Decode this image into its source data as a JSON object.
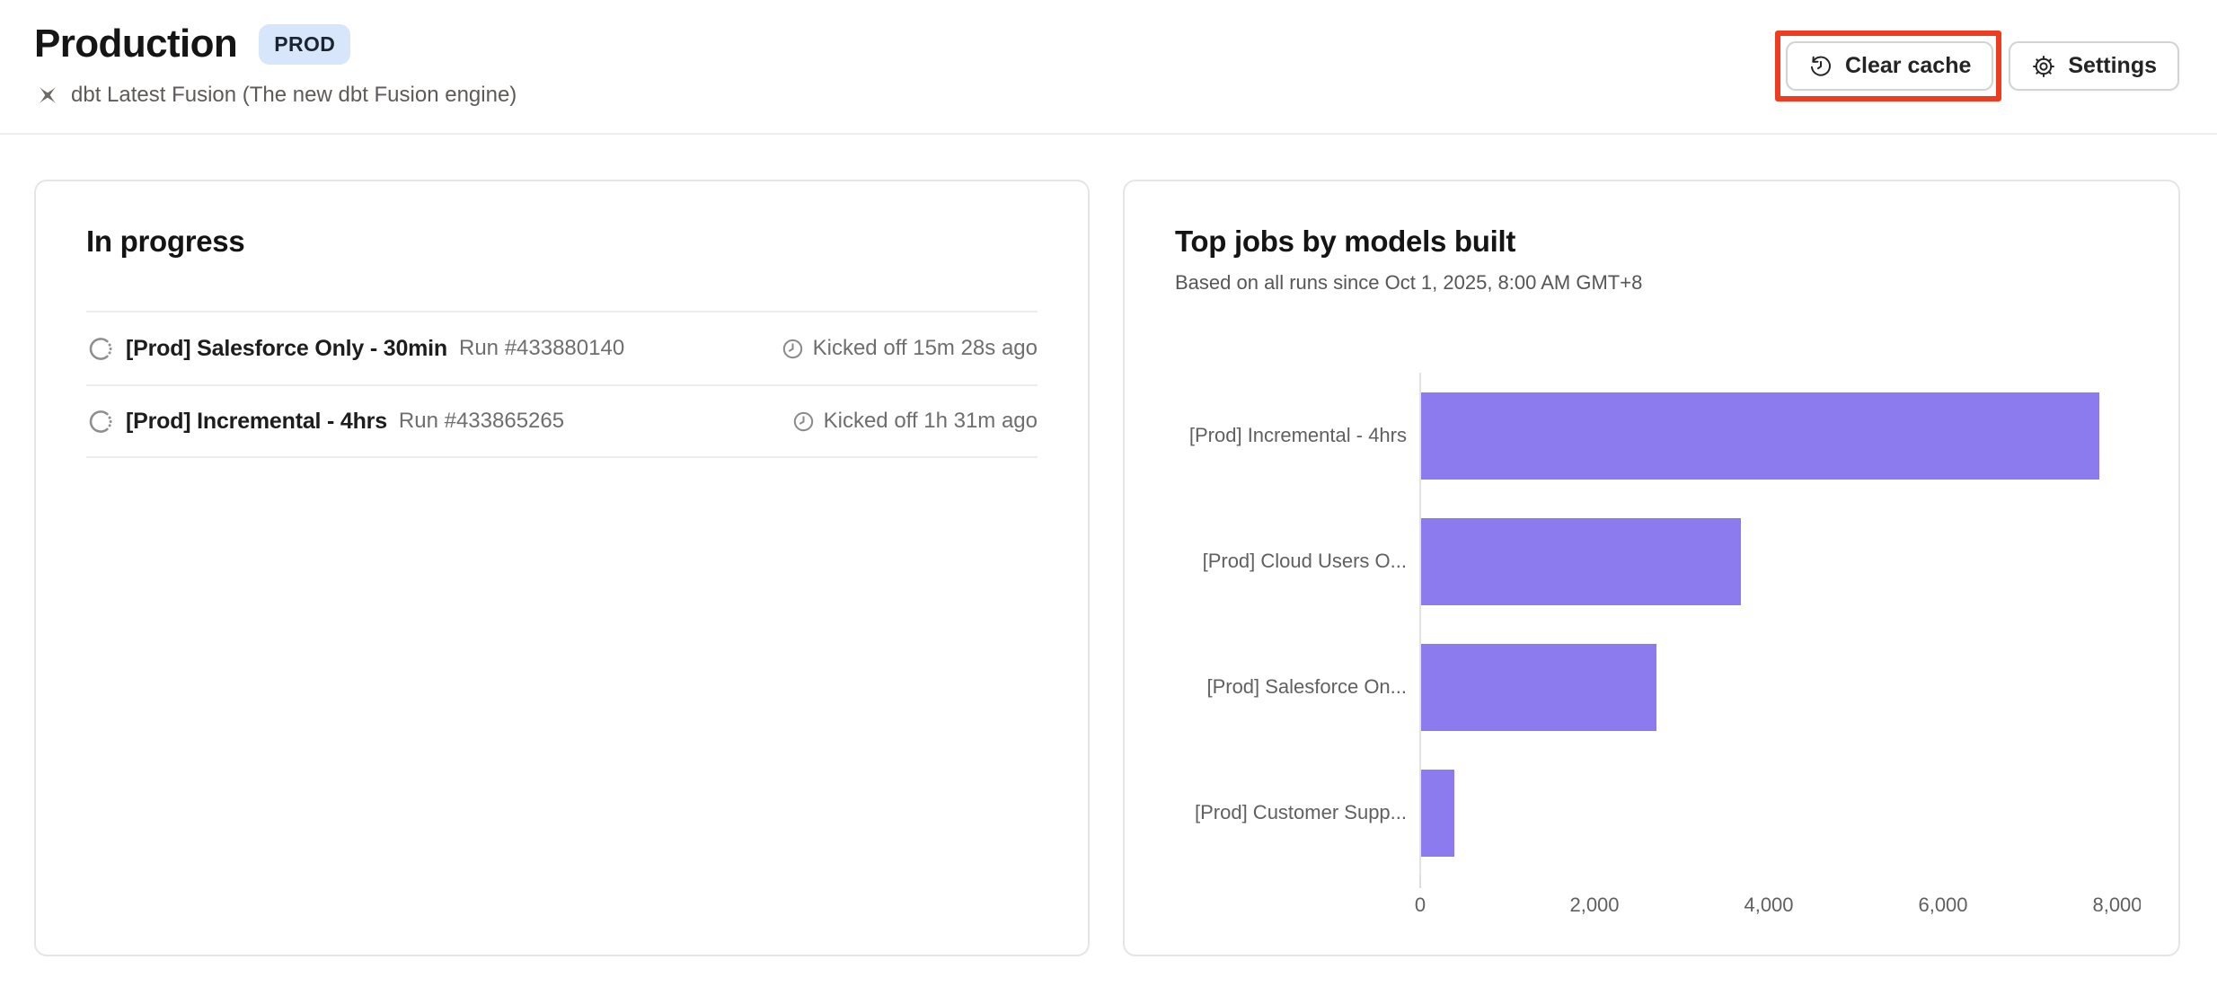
{
  "header": {
    "title": "Production",
    "badge": "PROD",
    "subtitle": "dbt Latest Fusion (The new dbt Fusion engine)",
    "subtitle_icon": "dbt-fusion-icon",
    "buttons": {
      "clear_cache": {
        "label": "Clear cache",
        "icon": "history-icon",
        "highlighted": true
      },
      "settings": {
        "label": "Settings",
        "icon": "gear-icon"
      }
    }
  },
  "in_progress": {
    "title": "In progress",
    "row_icon": "spinner-icon",
    "time_icon": "clock-icon",
    "runs": [
      {
        "job": "[Prod] Salesforce Only - 30min",
        "run": "Run #433880140",
        "kicked_off": "Kicked off 15m 28s ago"
      },
      {
        "job": "[Prod] Incremental - 4hrs",
        "run": "Run #433865265",
        "kicked_off": "Kicked off 1h 31m ago"
      }
    ]
  },
  "chart_card": {
    "title": "Top jobs by models built",
    "subtitle": "Based on all runs since Oct 1, 2025, 8:00 AM GMT+8"
  },
  "chart_data": {
    "type": "bar",
    "orientation": "horizontal",
    "title": "Top jobs by models built",
    "categories": [
      "[Prod] Incremental - 4hrs",
      "[Prod] Cloud Users O...",
      "[Prod] Salesforce On...",
      "[Prod] Customer Supp..."
    ],
    "values": [
      7780,
      3670,
      2700,
      380
    ],
    "xlabel": "",
    "ylabel": "",
    "xlim": [
      0,
      8300
    ],
    "xticks": [
      0,
      2000,
      4000,
      6000,
      8000
    ],
    "xtick_labels": [
      "0",
      "2,000",
      "4,000",
      "6,000",
      "8,000"
    ],
    "grid": false,
    "legend": false
  },
  "colors": {
    "bar": "#8B7BEE",
    "annotation_red": "#ED3C1F",
    "badge_bg": "#D8E6FB"
  }
}
